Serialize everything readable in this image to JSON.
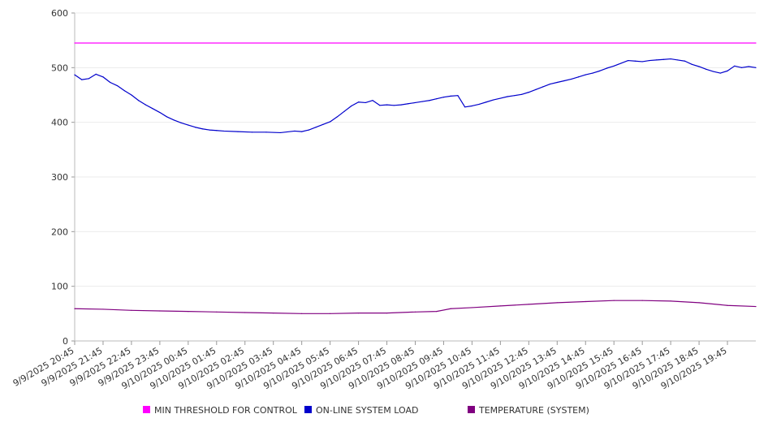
{
  "chart_data": {
    "type": "line",
    "title": "",
    "xlabel": "",
    "ylabel": "",
    "ylim": [
      0,
      600
    ],
    "yticks": [
      0,
      100,
      200,
      300,
      400,
      500,
      600
    ],
    "xlim": [
      "9/9/2025 20:45",
      "9/10/2025 20:45"
    ],
    "grid": true,
    "legend_position": "bottom",
    "x_tick_labels": [
      "9/9/2025 20:45",
      "9/9/2025 21:45",
      "9/9/2025 22:45",
      "9/9/2025 23:45",
      "9/10/2025 00:45",
      "9/10/2025 01:45",
      "9/10/2025 02:45",
      "9/10/2025 03:45",
      "9/10/2025 04:45",
      "9/10/2025 05:45",
      "9/10/2025 06:45",
      "9/10/2025 07:45",
      "9/10/2025 08:45",
      "9/10/2025 09:45",
      "9/10/2025 10:45",
      "9/10/2025 11:45",
      "9/10/2025 12:45",
      "9/10/2025 13:45",
      "9/10/2025 14:45",
      "9/10/2025 15:45",
      "9/10/2025 16:45",
      "9/10/2025 17:45",
      "9/10/2025 18:45",
      "9/10/2025 19:45"
    ],
    "series": [
      {
        "name": "MIN THRESHOLD FOR CONTROL",
        "color": "#ff00ff",
        "points": [
          [
            "9/9/2025 20:45",
            545
          ],
          [
            "9/10/2025 20:45",
            545
          ]
        ]
      },
      {
        "name": "ON-LINE SYSTEM LOAD",
        "color": "#0000cc",
        "points": [
          [
            "9/9/2025 20:45",
            487
          ],
          [
            "9/9/2025 21:00",
            478
          ],
          [
            "9/9/2025 21:15",
            480
          ],
          [
            "9/9/2025 21:30",
            488
          ],
          [
            "9/9/2025 21:45",
            483
          ],
          [
            "9/9/2025 22:00",
            473
          ],
          [
            "9/9/2025 22:15",
            467
          ],
          [
            "9/9/2025 22:30",
            458
          ],
          [
            "9/9/2025 22:45",
            450
          ],
          [
            "9/9/2025 23:00",
            440
          ],
          [
            "9/9/2025 23:15",
            432
          ],
          [
            "9/9/2025 23:30",
            425
          ],
          [
            "9/9/2025 23:45",
            418
          ],
          [
            "9/10/2025 00:00",
            410
          ],
          [
            "9/10/2025 00:15",
            404
          ],
          [
            "9/10/2025 00:30",
            399
          ],
          [
            "9/10/2025 00:45",
            395
          ],
          [
            "9/10/2025 01:00",
            391
          ],
          [
            "9/10/2025 01:15",
            388
          ],
          [
            "9/10/2025 01:30",
            386
          ],
          [
            "9/10/2025 01:45",
            385
          ],
          [
            "9/10/2025 02:00",
            384
          ],
          [
            "9/10/2025 02:30",
            383
          ],
          [
            "9/10/2025 03:00",
            382
          ],
          [
            "9/10/2025 03:30",
            382
          ],
          [
            "9/10/2025 04:00",
            381
          ],
          [
            "9/10/2025 04:30",
            384
          ],
          [
            "9/10/2025 04:45",
            383
          ],
          [
            "9/10/2025 05:00",
            386
          ],
          [
            "9/10/2025 05:15",
            391
          ],
          [
            "9/10/2025 05:30",
            396
          ],
          [
            "9/10/2025 05:45",
            401
          ],
          [
            "9/10/2025 06:00",
            410
          ],
          [
            "9/10/2025 06:15",
            420
          ],
          [
            "9/10/2025 06:30",
            430
          ],
          [
            "9/10/2025 06:45",
            437
          ],
          [
            "9/10/2025 07:00",
            436
          ],
          [
            "9/10/2025 07:15",
            440
          ],
          [
            "9/10/2025 07:30",
            431
          ],
          [
            "9/10/2025 07:45",
            432
          ],
          [
            "9/10/2025 08:00",
            431
          ],
          [
            "9/10/2025 08:15",
            432
          ],
          [
            "9/10/2025 08:30",
            434
          ],
          [
            "9/10/2025 08:45",
            436
          ],
          [
            "9/10/2025 09:00",
            438
          ],
          [
            "9/10/2025 09:15",
            440
          ],
          [
            "9/10/2025 09:30",
            443
          ],
          [
            "9/10/2025 09:45",
            446
          ],
          [
            "9/10/2025 10:00",
            448
          ],
          [
            "9/10/2025 10:15",
            449
          ],
          [
            "9/10/2025 10:30",
            428
          ],
          [
            "9/10/2025 10:45",
            430
          ],
          [
            "9/10/2025 11:00",
            433
          ],
          [
            "9/10/2025 11:15",
            437
          ],
          [
            "9/10/2025 11:30",
            441
          ],
          [
            "9/10/2025 11:45",
            444
          ],
          [
            "9/10/2025 12:00",
            447
          ],
          [
            "9/10/2025 12:15",
            449
          ],
          [
            "9/10/2025 12:30",
            451
          ],
          [
            "9/10/2025 12:45",
            455
          ],
          [
            "9/10/2025 13:00",
            460
          ],
          [
            "9/10/2025 13:15",
            465
          ],
          [
            "9/10/2025 13:30",
            470
          ],
          [
            "9/10/2025 13:45",
            473
          ],
          [
            "9/10/2025 14:00",
            476
          ],
          [
            "9/10/2025 14:15",
            479
          ],
          [
            "9/10/2025 14:30",
            483
          ],
          [
            "9/10/2025 14:45",
            487
          ],
          [
            "9/10/2025 15:00",
            490
          ],
          [
            "9/10/2025 15:15",
            494
          ],
          [
            "9/10/2025 15:30",
            499
          ],
          [
            "9/10/2025 15:45",
            503
          ],
          [
            "9/10/2025 16:00",
            508
          ],
          [
            "9/10/2025 16:15",
            513
          ],
          [
            "9/10/2025 16:30",
            512
          ],
          [
            "9/10/2025 16:45",
            511
          ],
          [
            "9/10/2025 17:00",
            513
          ],
          [
            "9/10/2025 17:15",
            514
          ],
          [
            "9/10/2025 17:30",
            515
          ],
          [
            "9/10/2025 17:45",
            516
          ],
          [
            "9/10/2025 18:00",
            514
          ],
          [
            "9/10/2025 18:15",
            512
          ],
          [
            "9/10/2025 18:30",
            506
          ],
          [
            "9/10/2025 18:45",
            502
          ],
          [
            "9/10/2025 19:00",
            497
          ],
          [
            "9/10/2025 19:15",
            493
          ],
          [
            "9/10/2025 19:30",
            490
          ],
          [
            "9/10/2025 19:45",
            494
          ],
          [
            "9/10/2025 20:00",
            503
          ],
          [
            "9/10/2025 20:15",
            500
          ],
          [
            "9/10/2025 20:30",
            502
          ],
          [
            "9/10/2025 20:45",
            500
          ]
        ]
      },
      {
        "name": "TEMPERATURE (SYSTEM)",
        "color": "#800080",
        "points": [
          [
            "9/9/2025 20:45",
            59
          ],
          [
            "9/9/2025 21:45",
            58
          ],
          [
            "9/9/2025 22:45",
            56
          ],
          [
            "9/9/2025 23:45",
            55
          ],
          [
            "9/10/2025 00:45",
            54
          ],
          [
            "9/10/2025 01:45",
            53
          ],
          [
            "9/10/2025 02:45",
            52
          ],
          [
            "9/10/2025 03:45",
            51
          ],
          [
            "9/10/2025 04:45",
            50
          ],
          [
            "9/10/2025 05:45",
            50
          ],
          [
            "9/10/2025 06:45",
            51
          ],
          [
            "9/10/2025 07:45",
            51
          ],
          [
            "9/10/2025 08:45",
            53
          ],
          [
            "9/10/2025 09:30",
            54
          ],
          [
            "9/10/2025 10:00",
            59
          ],
          [
            "9/10/2025 10:45",
            61
          ],
          [
            "9/10/2025 11:45",
            64
          ],
          [
            "9/10/2025 12:45",
            67
          ],
          [
            "9/10/2025 13:45",
            70
          ],
          [
            "9/10/2025 14:45",
            72
          ],
          [
            "9/10/2025 15:45",
            74
          ],
          [
            "9/10/2025 16:45",
            74
          ],
          [
            "9/10/2025 17:45",
            73
          ],
          [
            "9/10/2025 18:45",
            70
          ],
          [
            "9/10/2025 19:45",
            65
          ],
          [
            "9/10/2025 20:45",
            63
          ]
        ]
      }
    ]
  }
}
